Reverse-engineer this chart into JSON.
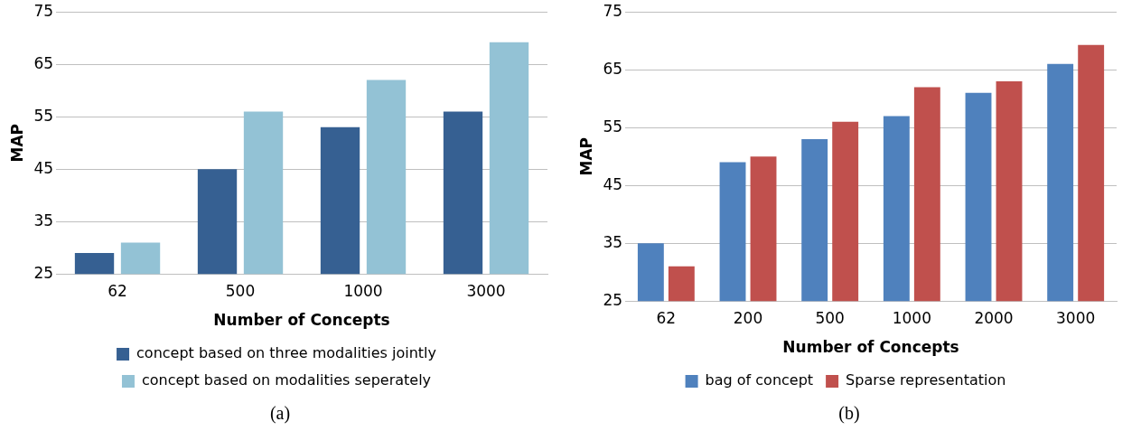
{
  "chart_data": [
    {
      "type": "bar",
      "categories": [
        "62",
        "500",
        "1000",
        "3000"
      ],
      "xlabel": "Number of Concepts",
      "ylabel": "MAP",
      "ylim": [
        25,
        75
      ],
      "yticks": [
        25,
        35,
        45,
        55,
        65,
        75
      ],
      "grid": "y",
      "legend": "bottom",
      "annotations": [
        "(a)"
      ],
      "series": [
        {
          "name": "concept based on three modalities jointly",
          "color": "#366092",
          "values": [
            29,
            45,
            53,
            56
          ]
        },
        {
          "name": "concept based on modalities seperately",
          "color": "#93c2d5",
          "values": [
            31,
            56,
            62,
            69.2
          ]
        }
      ]
    },
    {
      "type": "bar",
      "categories": [
        "62",
        "200",
        "500",
        "1000",
        "2000",
        "3000"
      ],
      "xlabel": "Number of Concepts",
      "ylabel": "MAP",
      "ylim": [
        25,
        75
      ],
      "yticks": [
        25,
        35,
        45,
        55,
        65,
        75
      ],
      "grid": "y",
      "legend": "bottom",
      "annotations": [
        "(b)"
      ],
      "series": [
        {
          "name": "bag of concept",
          "color": "#4f81bd",
          "values": [
            35,
            49,
            53,
            57,
            61,
            66
          ]
        },
        {
          "name": "Sparse representation",
          "color": "#c0504d",
          "values": [
            31,
            50,
            56,
            62,
            63,
            69.3
          ]
        }
      ]
    }
  ]
}
